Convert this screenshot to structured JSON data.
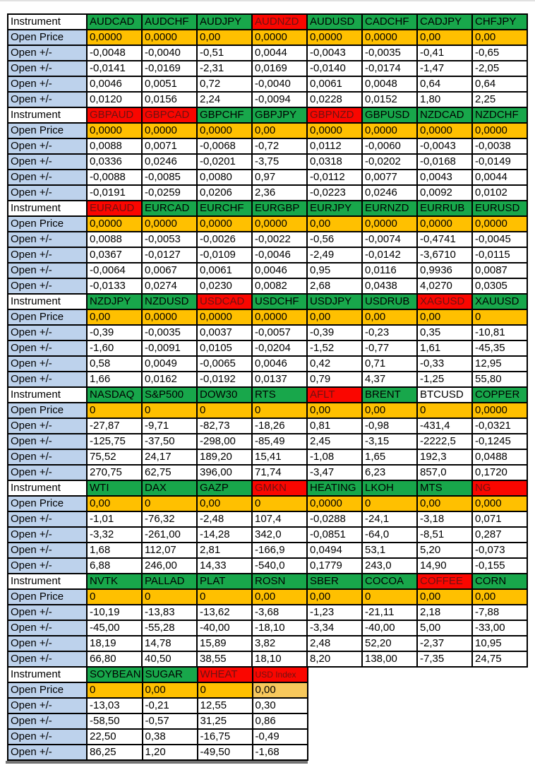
{
  "palette": {
    "green": "#18A74B",
    "red": "#FA0600",
    "orange": "#FFC000",
    "light_orange": "#F7C85C",
    "label_blue": "#BDD2EC",
    "header_text_on_red": "#6E1212",
    "text": "#000000",
    "shadow_gray": "#737373"
  },
  "row_labels": {
    "instrument": "Instrument",
    "open_price": "Open Price",
    "change": "Open +/-"
  },
  "blocks": [
    {
      "headers": [
        {
          "t": "AUDCAD",
          "s": "green"
        },
        {
          "t": "AUDCHF",
          "s": "green"
        },
        {
          "t": "AUDJPY",
          "s": "green"
        },
        {
          "t": "AUDNZD",
          "s": "red"
        },
        {
          "t": "AUDUSD",
          "s": "green"
        },
        {
          "t": "CADCHF",
          "s": "green"
        },
        {
          "t": "CADJPY",
          "s": "green"
        },
        {
          "t": "CHFJPY",
          "s": "green"
        }
      ],
      "open": [
        "0,0000",
        "0,0000",
        "0,00",
        "0,0000",
        "0,0000",
        "0,0000",
        "0,00",
        "0,00"
      ],
      "changes": [
        [
          "-0,0048",
          "-0,0040",
          "-0,51",
          "0,0044",
          "-0,0043",
          "-0,0035",
          "-0,41",
          "-0,65"
        ],
        [
          "-0,0141",
          "-0,0169",
          "-2,31",
          "0,0169",
          "-0,0140",
          "-0,0174",
          "-1,47",
          "-2,05"
        ],
        [
          "0,0046",
          "0,0051",
          "0,72",
          "-0,0040",
          "0,0061",
          "0,0048",
          "0,64",
          "0,64"
        ],
        [
          "0,0120",
          "0,0156",
          "2,24",
          "-0,0094",
          "0,0228",
          "0,0152",
          "1,80",
          "2,25"
        ]
      ]
    },
    {
      "headers": [
        {
          "t": "GBPAUD",
          "s": "red"
        },
        {
          "t": "GBPCAD",
          "s": "red"
        },
        {
          "t": "GBPCHF",
          "s": "green"
        },
        {
          "t": "GBPJPY",
          "s": "green"
        },
        {
          "t": "GBPNZD",
          "s": "red"
        },
        {
          "t": "GBPUSD",
          "s": "green"
        },
        {
          "t": "NZDCAD",
          "s": "green"
        },
        {
          "t": "NZDCHF",
          "s": "green"
        }
      ],
      "open": [
        "0,0000",
        "0,0000",
        "0,0000",
        "0,00",
        "0,0000",
        "0,0000",
        "0,0000",
        "0,0000"
      ],
      "changes": [
        [
          "0,0088",
          "0,0071",
          "-0,0068",
          "-0,72",
          "0,0112",
          "-0,0060",
          "-0,0043",
          "-0,0038"
        ],
        [
          "0,0336",
          "0,0246",
          "-0,0201",
          "-3,75",
          "0,0318",
          "-0,0202",
          "-0,0168",
          "-0,0149"
        ],
        [
          "-0,0088",
          "-0,0085",
          "0,0080",
          "0,97",
          "-0,0112",
          "0,0077",
          "0,0043",
          "0,0044"
        ],
        [
          "-0,0191",
          "-0,0259",
          "0,0206",
          "2,36",
          "-0,0223",
          "0,0246",
          "0,0092",
          "0,0102"
        ]
      ]
    },
    {
      "headers": [
        {
          "t": "EURAUD",
          "s": "red"
        },
        {
          "t": "EURCAD",
          "s": "green"
        },
        {
          "t": "EURCHF",
          "s": "green"
        },
        {
          "t": "EURGBP",
          "s": "green"
        },
        {
          "t": "EURJPY",
          "s": "green"
        },
        {
          "t": "EURNZD",
          "s": "green"
        },
        {
          "t": "EURRUB",
          "s": "green"
        },
        {
          "t": "EURUSD",
          "s": "green"
        }
      ],
      "open": [
        "0,0000",
        "0,0000",
        "0,0000",
        "0,0000",
        "0,00",
        "0,0000",
        "0,0000",
        "0,0000"
      ],
      "changes": [
        [
          "0,0088",
          "-0,0053",
          "-0,0026",
          "-0,0022",
          "-0,56",
          "-0,0074",
          "-0,4741",
          "-0,0045"
        ],
        [
          "0,0367",
          "-0,0127",
          "-0,0109",
          "-0,0046",
          "-2,49",
          "-0,0142",
          "-3,6710",
          "-0,0115"
        ],
        [
          "-0,0064",
          "0,0067",
          "0,0061",
          "0,0046",
          "0,95",
          "0,0116",
          "0,9936",
          "0,0087"
        ],
        [
          "-0,0133",
          "0,0274",
          "0,0230",
          "0,0082",
          "2,68",
          "0,0438",
          "4,0270",
          "0,0305"
        ]
      ]
    },
    {
      "headers": [
        {
          "t": "NZDJPY",
          "s": "green"
        },
        {
          "t": "NZDUSD",
          "s": "green"
        },
        {
          "t": "USDCAD",
          "s": "red"
        },
        {
          "t": "USDCHF",
          "s": "green"
        },
        {
          "t": "USDJPY",
          "s": "green"
        },
        {
          "t": "USDRUB",
          "s": "green"
        },
        {
          "t": "XAGUSD",
          "s": "red"
        },
        {
          "t": "XAUUSD",
          "s": "green"
        }
      ],
      "open": [
        "0,00",
        "0,0000",
        "0,0000",
        "0,0000",
        "0,00",
        "0,00",
        "0,00",
        "0"
      ],
      "changes": [
        [
          "-0,39",
          "-0,0035",
          "0,0037",
          "-0,0057",
          "-0,39",
          "-0,23",
          "0,35",
          "-10,81"
        ],
        [
          "-1,60",
          "-0,0091",
          "0,0105",
          "-0,0204",
          "-1,52",
          "-0,77",
          "1,61",
          "-45,35"
        ],
        [
          "0,58",
          "0,0049",
          "-0,0065",
          "0,0046",
          "0,42",
          "0,71",
          "-0,33",
          "12,95"
        ],
        [
          "1,66",
          "0,0162",
          "-0,0192",
          "0,0137",
          "0,79",
          "4,37",
          "-1,25",
          "55,80"
        ]
      ]
    },
    {
      "headers": [
        {
          "t": "NASDAQ",
          "s": "green"
        },
        {
          "t": "S&P500",
          "s": "green"
        },
        {
          "t": "DOW30",
          "s": "green"
        },
        {
          "t": "RTS",
          "s": "green"
        },
        {
          "t": "AFLT",
          "s": "red"
        },
        {
          "t": "BRENT",
          "s": "green"
        },
        {
          "t": "BTCUSD",
          "s": "white"
        },
        {
          "t": "COPPER",
          "s": "green"
        }
      ],
      "open": [
        "0",
        "0",
        "0",
        "0",
        "0,00",
        "0,00",
        "0",
        "0,0000"
      ],
      "changes": [
        [
          "-27,87",
          "-9,71",
          "-82,73",
          "-18,26",
          "0,81",
          "-0,98",
          "-431,4",
          "-0,0321"
        ],
        [
          "-125,75",
          "-37,50",
          "-298,00",
          "-85,49",
          "2,45",
          "-3,15",
          "-2222,5",
          "-0,1245"
        ],
        [
          "75,52",
          "24,17",
          "189,20",
          "15,41",
          "-1,08",
          "1,65",
          "192,3",
          "0,0488"
        ],
        [
          "270,75",
          "62,75",
          "396,00",
          "71,74",
          "-3,47",
          "6,23",
          "857,0",
          "0,1720"
        ]
      ]
    },
    {
      "headers": [
        {
          "t": "WTI",
          "s": "green"
        },
        {
          "t": "DAX",
          "s": "green"
        },
        {
          "t": "GAZP",
          "s": "green"
        },
        {
          "t": "GMKN",
          "s": "red"
        },
        {
          "t": "HEATING",
          "s": "green"
        },
        {
          "t": "LKOH",
          "s": "green"
        },
        {
          "t": "MTS",
          "s": "green"
        },
        {
          "t": "NG",
          "s": "red"
        }
      ],
      "open": [
        "0,00",
        "0",
        "0,00",
        "0",
        "0,0000",
        "0",
        "0,00",
        "0,000"
      ],
      "changes": [
        [
          "-1,01",
          "-76,32",
          "-2,48",
          "107,4",
          "-0,0288",
          "-24,1",
          "-3,18",
          "0,071"
        ],
        [
          "-3,32",
          "-261,00",
          "-14,28",
          "342,0",
          "-0,0851",
          "-64,0",
          "-8,51",
          "0,287"
        ],
        [
          "1,68",
          "112,07",
          "2,81",
          "-166,9",
          "0,0494",
          "53,1",
          "5,20",
          "-0,073"
        ],
        [
          "6,88",
          "246,00",
          "14,33",
          "-540,0",
          "0,1779",
          "243,0",
          "14,90",
          "-0,155"
        ]
      ]
    },
    {
      "headers": [
        {
          "t": "NVTK",
          "s": "green"
        },
        {
          "t": "PALLAD",
          "s": "green"
        },
        {
          "t": "PLAT",
          "s": "green"
        },
        {
          "t": "ROSN",
          "s": "green"
        },
        {
          "t": "SBER",
          "s": "green"
        },
        {
          "t": "COCOA",
          "s": "green"
        },
        {
          "t": "COFFEE",
          "s": "red"
        },
        {
          "t": "CORN",
          "s": "green"
        }
      ],
      "open": [
        "0",
        "0",
        "0",
        "0,00",
        "0,00",
        "0",
        "0,00",
        "0,00"
      ],
      "changes": [
        [
          "-10,19",
          "-13,83",
          "-13,62",
          "-3,68",
          "-1,23",
          "-21,11",
          "2,18",
          "-7,88"
        ],
        [
          "-45,00",
          "-55,28",
          "-40,00",
          "-18,10",
          "-3,34",
          "-40,00",
          "5,00",
          "-33,00"
        ],
        [
          "18,19",
          "14,78",
          "15,89",
          "3,82",
          "2,48",
          "52,20",
          "-2,37",
          "10,95"
        ],
        [
          "66,80",
          "40,50",
          "38,55",
          "18,10",
          "8,20",
          "138,00",
          "-7,35",
          "24,75"
        ]
      ]
    },
    {
      "headers": [
        {
          "t": "SOYBEAN",
          "s": "green"
        },
        {
          "t": "SUGAR",
          "s": "green"
        },
        {
          "t": "WHEAT",
          "s": "red"
        },
        {
          "t": "USD Index",
          "s": "red-small"
        }
      ],
      "open": [
        "0",
        "0,00",
        "0",
        "0,00"
      ],
      "open_styles": [
        "cell-orange",
        "cell-orange",
        "cell-orange",
        "cell-light-orange"
      ],
      "changes": [
        [
          "-13,03",
          "-0,21",
          "12,55",
          "0,30"
        ],
        [
          "-58,50",
          "-0,57",
          "31,25",
          "0,86"
        ],
        [
          "22,50",
          "0,38",
          "-16,75",
          "-0,49"
        ],
        [
          "86,25",
          "1,20",
          "-49,50",
          "-1,68"
        ]
      ]
    }
  ]
}
